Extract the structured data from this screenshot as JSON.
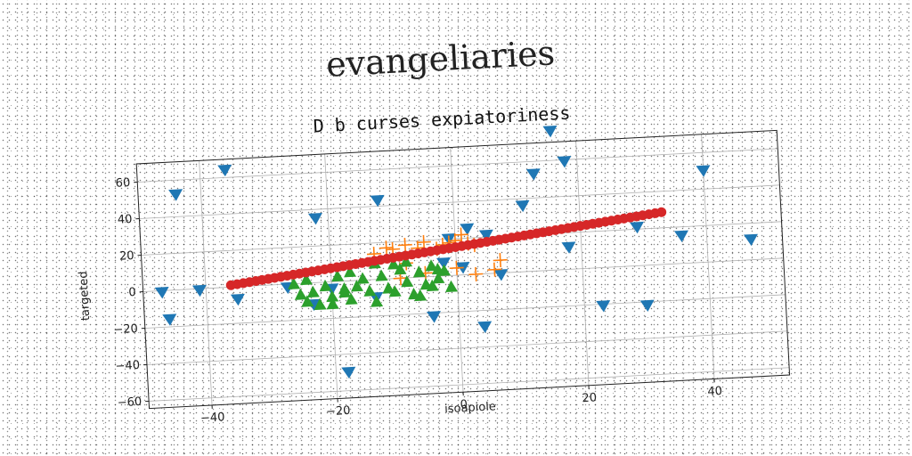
{
  "suptitle": "evangeliaries",
  "chart_data": {
    "type": "scatter",
    "title": "D b curses expiatoriness",
    "xlabel": "isoapiole",
    "ylabel": "targeted",
    "xlim": [
      -50,
      52
    ],
    "ylim": [
      -64,
      70
    ],
    "xticks": [
      -40,
      -20,
      0,
      20,
      40
    ],
    "yticks": [
      -60,
      -40,
      -20,
      0,
      20,
      40,
      60
    ],
    "grid": true,
    "colors": {
      "blue": "#1f77b4",
      "orange": "#ff7f0e",
      "green": "#2ca02c",
      "red": "#d62728"
    },
    "series": [
      {
        "marker": "triangle-down",
        "color": "#1f77b4",
        "points": [
          [
            -47,
            -1
          ],
          [
            -46,
            -16
          ],
          [
            -44,
            52
          ],
          [
            -41,
            -1
          ],
          [
            -36,
            64
          ],
          [
            -35,
            -7
          ],
          [
            -27,
            -2
          ],
          [
            -23,
            -12
          ],
          [
            -22,
            35
          ],
          [
            -20,
            -4
          ],
          [
            -18,
            -50
          ],
          [
            -13,
            -10
          ],
          [
            -12,
            43
          ],
          [
            -4,
            -22
          ],
          [
            -2,
            7
          ],
          [
            -1,
            20
          ],
          [
            1,
            4
          ],
          [
            2,
            25
          ],
          [
            4,
            -29
          ],
          [
            5,
            21
          ],
          [
            7,
            -1
          ],
          [
            11,
            36
          ],
          [
            13,
            53
          ],
          [
            16,
            76
          ],
          [
            18,
            59
          ],
          [
            18,
            12
          ],
          [
            23,
            -21
          ],
          [
            29,
            21
          ],
          [
            30,
            -22
          ],
          [
            36,
            15
          ],
          [
            40,
            50
          ],
          [
            47,
            11
          ]
        ]
      },
      {
        "marker": "plus",
        "color": "#ff7f0e",
        "points": [
          [
            -13,
            14
          ],
          [
            -11,
            17
          ],
          [
            -10,
            16
          ],
          [
            -8,
            18
          ],
          [
            -6,
            16
          ],
          [
            -5,
            19
          ],
          [
            -3,
            15
          ],
          [
            -2,
            17
          ],
          [
            -1,
            18
          ],
          [
            0,
            19
          ],
          [
            1,
            22
          ],
          [
            2,
            17
          ],
          [
            3,
            16
          ],
          [
            -9,
            0
          ],
          [
            -5,
            2
          ],
          [
            0,
            4
          ],
          [
            3,
            0
          ],
          [
            6,
            2
          ],
          [
            7,
            7
          ],
          [
            -8,
            8
          ]
        ]
      },
      {
        "marker": "triangle-up",
        "color": "#2ca02c",
        "points": [
          [
            -26,
            0
          ],
          [
            -25,
            -6
          ],
          [
            -24,
            -10
          ],
          [
            -23,
            -5
          ],
          [
            -22,
            -12
          ],
          [
            -21,
            -2
          ],
          [
            -20,
            -8
          ],
          [
            -19,
            3
          ],
          [
            -18,
            -4
          ],
          [
            -17,
            -10
          ],
          [
            -16,
            -3
          ],
          [
            -15,
            1
          ],
          [
            -14,
            -6
          ],
          [
            -13,
            -12
          ],
          [
            -12,
            2
          ],
          [
            -11,
            -5
          ],
          [
            -10,
            8
          ],
          [
            -9,
            5
          ],
          [
            -8,
            -2
          ],
          [
            -7,
            -9
          ],
          [
            -6,
            3
          ],
          [
            -5,
            -4
          ],
          [
            -4,
            6
          ],
          [
            -3,
            -1
          ],
          [
            -2,
            3
          ],
          [
            -1,
            -6
          ],
          [
            -24,
            2
          ],
          [
            -20,
            -12
          ],
          [
            -17,
            5
          ],
          [
            -13,
            9
          ],
          [
            -10,
            -7
          ],
          [
            -8,
            9
          ],
          [
            -6,
            -10
          ],
          [
            -4,
            -5
          ],
          [
            -3,
            4
          ],
          [
            -18,
            -6
          ]
        ]
      },
      {
        "marker": "circle",
        "color": "#d62728",
        "points": [
          [
            -36,
            1
          ],
          [
            -35,
            1.4
          ],
          [
            -34,
            1.8
          ],
          [
            -33,
            2.2
          ],
          [
            -32,
            2.6
          ],
          [
            -31,
            3
          ],
          [
            -30,
            3.4
          ],
          [
            -29,
            3.8
          ],
          [
            -28,
            4.2
          ],
          [
            -27,
            4.6
          ],
          [
            -26,
            5
          ],
          [
            -25,
            5.4
          ],
          [
            -24,
            5.8
          ],
          [
            -23,
            6.2
          ],
          [
            -22,
            6.6
          ],
          [
            -21,
            7
          ],
          [
            -20,
            7.4
          ],
          [
            -19,
            7.8
          ],
          [
            -18,
            8.2
          ],
          [
            -17,
            8.6
          ],
          [
            -16,
            9
          ],
          [
            -15,
            9.4
          ],
          [
            -14,
            9.8
          ],
          [
            -13,
            10.2
          ],
          [
            -12,
            10.6
          ],
          [
            -11,
            11
          ],
          [
            -10,
            11.4
          ],
          [
            -9,
            11.8
          ],
          [
            -8,
            12.2
          ],
          [
            -7,
            12.6
          ],
          [
            -6,
            13
          ],
          [
            -5,
            13.4
          ],
          [
            -4,
            13.8
          ],
          [
            -3,
            14.2
          ],
          [
            -2,
            14.6
          ],
          [
            -1,
            15
          ],
          [
            0,
            15.4
          ],
          [
            1,
            15.8
          ],
          [
            2,
            16.2
          ],
          [
            3,
            16.6
          ],
          [
            4,
            17
          ],
          [
            5,
            17.4
          ],
          [
            6,
            17.8
          ],
          [
            7,
            18.2
          ],
          [
            8,
            18.6
          ],
          [
            9,
            19
          ],
          [
            10,
            19.4
          ],
          [
            11,
            19.8
          ],
          [
            12,
            20.2
          ],
          [
            13,
            20.6
          ],
          [
            14,
            21
          ],
          [
            15,
            21.4
          ],
          [
            16,
            21.8
          ],
          [
            17,
            22.2
          ],
          [
            18,
            22.6
          ],
          [
            19,
            23
          ],
          [
            20,
            23.4
          ],
          [
            21,
            23.8
          ],
          [
            22,
            24.2
          ],
          [
            23,
            24.6
          ],
          [
            24,
            25
          ],
          [
            25,
            25.4
          ],
          [
            26,
            25.8
          ],
          [
            27,
            26.2
          ],
          [
            28,
            26.6
          ],
          [
            29,
            27
          ],
          [
            30,
            27.4
          ],
          [
            31,
            27.8
          ],
          [
            32,
            28.2
          ],
          [
            33,
            28.6
          ]
        ]
      }
    ]
  }
}
